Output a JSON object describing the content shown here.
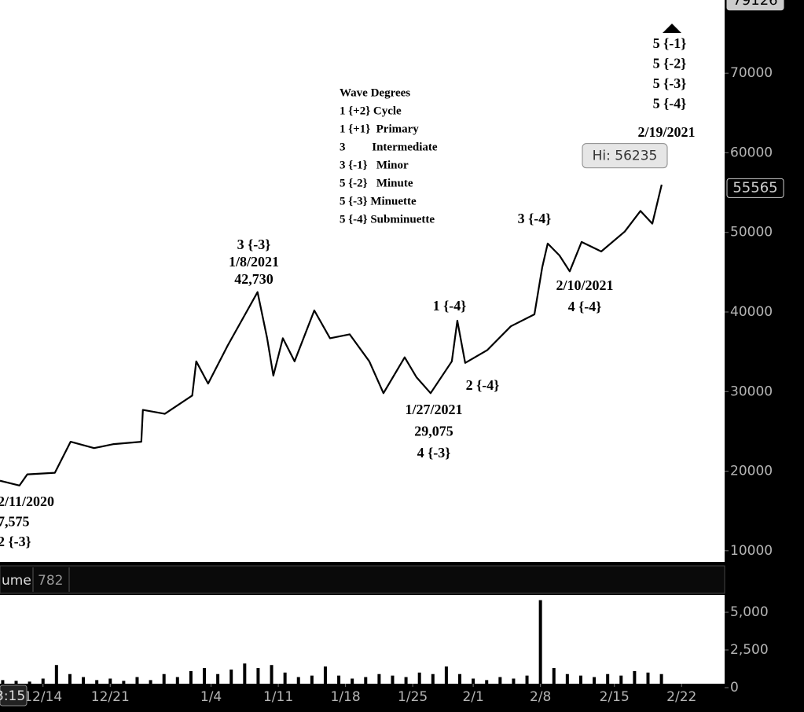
{
  "chart_data": [
    {
      "type": "line",
      "color": "#000000",
      "x": [
        -3.2,
        -1.75,
        -1.17,
        0.88,
        2.05,
        3.8,
        5.26,
        7.31,
        7.43,
        9.06,
        11.1,
        11.4,
        12.28,
        13.74,
        15.2,
        15.96,
        16.67,
        17.13,
        17.84,
        18.71,
        20.18,
        21.35,
        22.81,
        24.27,
        25.32,
        26.9,
        27.78,
        28.83,
        30.41,
        30.82,
        31.4,
        33.04,
        34.8,
        36.55,
        37.13,
        37.54,
        38.42,
        39.18,
        40.06,
        41.52,
        43.27,
        44.44,
        45.32,
        46.02
      ],
      "values": [
        18800,
        18200,
        19600,
        19800,
        23700,
        22900,
        23400,
        23700,
        27700,
        27200,
        29500,
        33800,
        31000,
        35800,
        40200,
        42500,
        36700,
        32000,
        36700,
        33800,
        40200,
        36700,
        37200,
        33800,
        29800,
        34300,
        31800,
        29800,
        33800,
        38900,
        33600,
        35200,
        38200,
        39700,
        45600,
        48600,
        47100,
        45100,
        48800,
        47600,
        50100,
        52700,
        51100,
        56000
      ],
      "xlim": [
        -3.2,
        50.7
      ],
      "ylim": [
        8600,
        79200
      ],
      "yticks": [
        10000,
        20000,
        30000,
        40000,
        50000,
        60000,
        70000
      ],
      "top_value": 79126,
      "last_value": 55565,
      "high_label": {
        "value": 56235,
        "label": "Hi: 56235"
      },
      "annotations": [
        {
          "lines": [
            "5 {-1}",
            "5 {-2}",
            "5 {-3}",
            "5 {-4}"
          ]
        },
        {
          "lines": [
            "2/19/2021"
          ]
        },
        {
          "lines": [
            "Wave Degrees",
            "1 {+2} Cycle",
            "1 {+1}  Primary",
            "3         Intermediate",
            "3 {-1}   Minor",
            "5 {-2}   Minute",
            "5 {-3} Minuette",
            "5 {-4} Subminuette"
          ]
        },
        {
          "lines": [
            "3 {-3}",
            "1/8/2021",
            "42,730"
          ]
        },
        {
          "lines": [
            "1 {-4}"
          ]
        },
        {
          "lines": [
            "2 {-4}"
          ]
        },
        {
          "lines": [
            "1/27/2021",
            "29,075",
            "4 {-3}"
          ]
        },
        {
          "lines": [
            "3 {-4}"
          ]
        },
        {
          "lines": [
            "2/10/2021",
            "4 {-4}"
          ]
        },
        {
          "lines": [
            "2/11/2020",
            "7,575",
            "2 {-3}"
          ]
        }
      ]
    },
    {
      "type": "bar",
      "color": "#000000",
      "title": "ume",
      "last_value": 782,
      "time_label": "3:15",
      "x": [
        -3,
        -2,
        -1,
        0,
        1,
        2,
        3,
        4,
        5,
        6,
        7,
        8,
        9,
        10,
        11,
        12,
        13,
        14,
        15,
        16,
        17,
        18,
        19,
        20,
        21,
        22,
        23,
        24,
        25,
        26,
        27,
        28,
        29,
        30,
        31,
        32,
        33,
        34,
        35,
        36,
        37,
        38,
        39,
        40,
        41,
        42,
        43,
        44,
        45,
        46
      ],
      "values": [
        500,
        450,
        400,
        600,
        1500,
        900,
        700,
        500,
        600,
        450,
        700,
        500,
        900,
        700,
        1100,
        1300,
        900,
        1200,
        1600,
        1300,
        1500,
        1000,
        700,
        800,
        1400,
        800,
        600,
        700,
        900,
        800,
        700,
        1000,
        900,
        1400,
        900,
        600,
        500,
        700,
        600,
        800,
        5800,
        1300,
        900,
        800,
        700,
        900,
        800,
        1100,
        1000,
        900
      ],
      "xlim": [
        -3.2,
        50.7
      ],
      "ylim": [
        0,
        6150
      ],
      "yticks": [
        {
          "value": 0,
          "label": "0"
        },
        {
          "value": 2500,
          "label": "2,500"
        },
        {
          "value": 5000,
          "label": "5,000"
        }
      ],
      "xticks": [
        {
          "value": 0,
          "label": "12/14"
        },
        {
          "value": 5,
          "label": "12/21"
        },
        {
          "value": 12.5,
          "label": "1/4"
        },
        {
          "value": 17.5,
          "label": "1/11"
        },
        {
          "value": 22.5,
          "label": "1/18"
        },
        {
          "value": 27.5,
          "label": "1/25"
        },
        {
          "value": 32,
          "label": "2/1"
        },
        {
          "value": 37,
          "label": "2/8"
        },
        {
          "value": 42.5,
          "label": "2/15"
        },
        {
          "value": 47.5,
          "label": "2/22"
        }
      ]
    }
  ]
}
